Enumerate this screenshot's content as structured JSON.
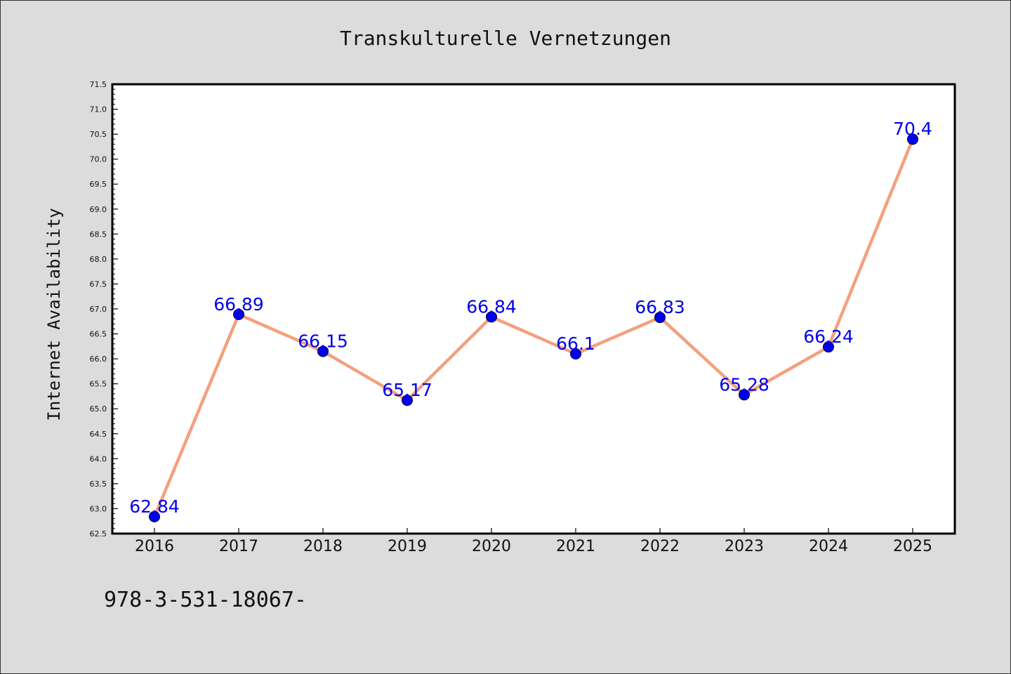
{
  "chart_data": {
    "type": "line",
    "title": "Transkulturelle Vernetzungen",
    "ylabel": "Internet Availability",
    "xlabel": "",
    "categories": [
      "2016",
      "2017",
      "2018",
      "2019",
      "2020",
      "2021",
      "2022",
      "2023",
      "2024",
      "2025"
    ],
    "series": [
      {
        "values": [
          62.84,
          66.89,
          66.15,
          65.17,
          66.84,
          66.1,
          66.83,
          65.28,
          66.24,
          70.4
        ],
        "labels": [
          "62.84",
          "66.89",
          "66.15",
          "65.17",
          "66.84",
          "66.1",
          "66.83",
          "65.28",
          "66.24",
          "70.4"
        ]
      }
    ],
    "ylim": [
      62.5,
      71.5
    ],
    "yticks": [
      "62.5",
      "63.0",
      "63.5",
      "64.0",
      "64.5",
      "65.0",
      "65.5",
      "66.0",
      "66.5",
      "67.0",
      "67.5",
      "68.0",
      "68.5",
      "69.0",
      "69.5",
      "70.0",
      "70.5",
      "71.0",
      "71.5"
    ],
    "minor_ticks_per_major": 5,
    "grid": false,
    "legend": "none",
    "colors": {
      "line": "#f4a07e",
      "marker": "#0000ee",
      "data_label": "#0000ee",
      "background": "#dcdcdc",
      "plot_area": "#ffffff",
      "frame": "#000000"
    }
  },
  "footer": {
    "isbn_text": "978-3-531-18067-"
  }
}
